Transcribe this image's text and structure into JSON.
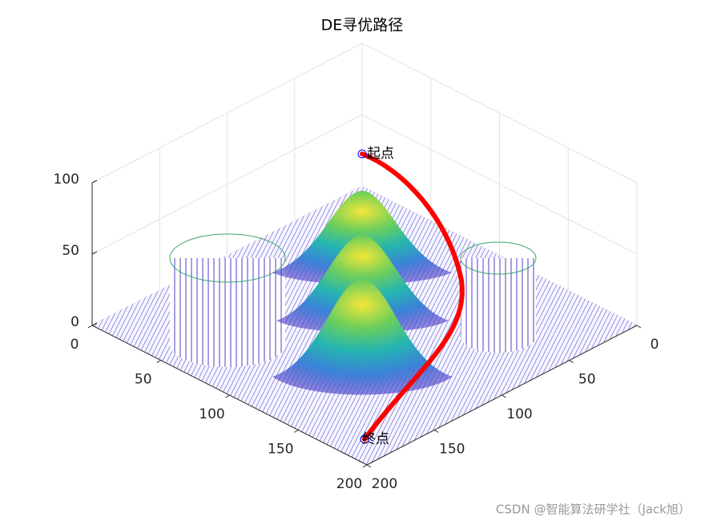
{
  "chart_data": {
    "type": "surface",
    "title": "DE寻优路径",
    "xlim": [
      0,
      200
    ],
    "xticks": [
      0,
      50,
      100,
      150,
      200
    ],
    "ylim": [
      0,
      200
    ],
    "yticks": [
      0,
      50,
      100,
      150,
      200
    ],
    "zlim": [
      0,
      100
    ],
    "zticks": [
      0,
      50,
      100
    ],
    "grid": true,
    "path_color": "#ff0000",
    "annotations": [
      "起点",
      "终点"
    ]
  },
  "watermark": "CSDN @智能算法研学社（Jack旭）"
}
